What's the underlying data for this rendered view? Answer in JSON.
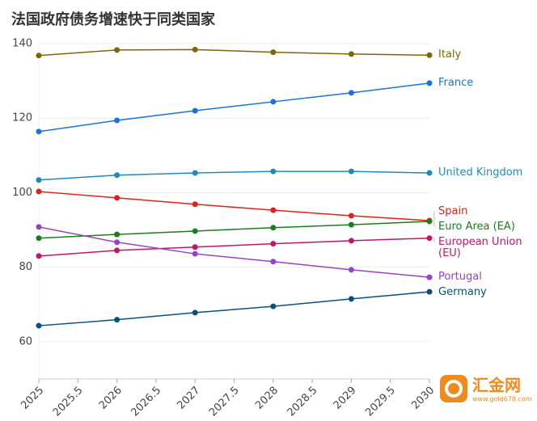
{
  "chart_data": {
    "type": "line",
    "title": "法国政府债务增速快于同类国家",
    "x": [
      2025,
      2026,
      2027,
      2028,
      2029,
      2030
    ],
    "xlim": [
      2025,
      2030
    ],
    "xticks": [
      2025,
      2025.5,
      2026,
      2026.5,
      2027,
      2027.5,
      2028,
      2028.5,
      2029,
      2029.5,
      2030
    ],
    "ylim": [
      50,
      140
    ],
    "yticks": [
      60,
      80,
      100,
      120,
      140
    ],
    "grid": true,
    "series": [
      {
        "name": "Italy",
        "color": "#7d6608",
        "values": [
          136.8,
          138.3,
          138.4,
          137.7,
          137.2,
          136.9
        ]
      },
      {
        "name": "France",
        "color": "#1a73d9",
        "values": [
          116.4,
          119.4,
          122.0,
          124.4,
          126.8,
          129.4
        ]
      },
      {
        "name": "United Kingdom",
        "color": "#1f89bd",
        "values": [
          103.4,
          104.7,
          105.3,
          105.7,
          105.7,
          105.3
        ]
      },
      {
        "name": "Spain",
        "color": "#e0201a",
        "values": [
          100.3,
          98.6,
          96.9,
          95.3,
          93.8,
          92.5
        ]
      },
      {
        "name": "Euro Area (EA)",
        "color": "#1a7f1a",
        "values": [
          87.8,
          88.8,
          89.7,
          90.6,
          91.4,
          92.3
        ]
      },
      {
        "name": "European Union (EU)",
        "color": "#c0166a",
        "values": [
          83.0,
          84.5,
          85.4,
          86.3,
          87.1,
          87.8
        ]
      },
      {
        "name": "Portugal",
        "color": "#9444c4",
        "values": [
          90.8,
          86.7,
          83.6,
          81.5,
          79.3,
          77.3
        ]
      },
      {
        "name": "Germany",
        "color": "#08507a",
        "values": [
          64.3,
          65.9,
          67.8,
          69.5,
          71.5,
          73.4
        ]
      }
    ]
  },
  "watermark": {
    "name": "汇金网",
    "url": "www.gold678.com"
  }
}
